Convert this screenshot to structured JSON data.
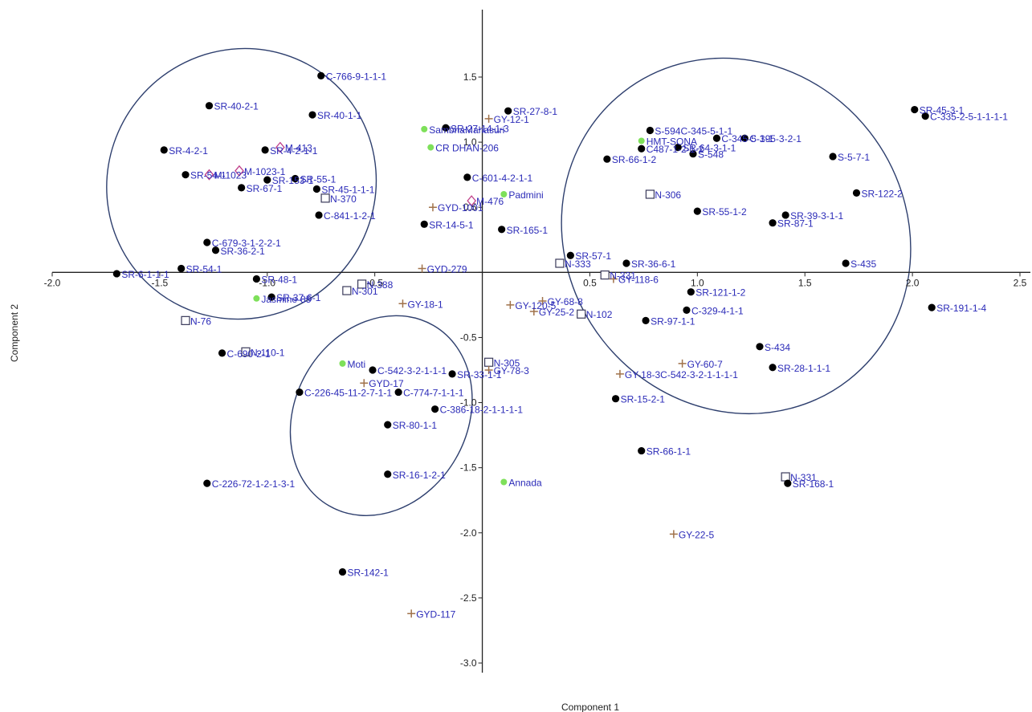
{
  "chart_data": {
    "type": "scatter",
    "title": "",
    "xlabel": "Component 1",
    "ylabel": "Component 2",
    "xlim": [
      -2.0,
      2.5
    ],
    "ylim": [
      -3.0,
      1.8
    ],
    "x_ticks": [
      "-2.0",
      "-1.5",
      "-1.0",
      "-0.5",
      "0",
      "0.5",
      "1.0",
      "1.5",
      "2.0",
      "2.5"
    ],
    "y_ticks": [
      "1.5",
      "1.0",
      "0.5",
      "0",
      "-0.5",
      "-1.0",
      "-1.5",
      "-2.0",
      "-2.5",
      "-3.0"
    ],
    "grid": false,
    "legend": "none",
    "colors": {
      "dot": "#000000",
      "square": "#3a3a5a",
      "cross": "#a0724a",
      "diamond": "#c0408a",
      "green": "#7ee05a",
      "label": "#2b2bb8",
      "ellipse": "#2e3f6e"
    },
    "points": [
      {
        "label": "C-766-9-1-1-1",
        "x": -0.75,
        "y": 1.51,
        "marker": "dot"
      },
      {
        "label": "SR-40-2-1",
        "x": -1.27,
        "y": 1.28,
        "marker": "dot"
      },
      {
        "label": "SR-40-1-1",
        "x": -0.79,
        "y": 1.21,
        "marker": "dot"
      },
      {
        "label": "SambhaMahasuri",
        "x": -0.27,
        "y": 1.1,
        "marker": "green"
      },
      {
        "label": "SR-27-8-1",
        "x": 0.12,
        "y": 1.24,
        "marker": "dot"
      },
      {
        "label": "GY-12-1",
        "x": 0.03,
        "y": 1.18,
        "marker": "cross"
      },
      {
        "label": "SR-27-14-1-3",
        "x": -0.17,
        "y": 1.11,
        "marker": "dot"
      },
      {
        "label": "SR-4-2-1-1",
        "x": -1.01,
        "y": 0.94,
        "marker": "dot"
      },
      {
        "label": "M-413",
        "x": -0.94,
        "y": 0.96,
        "marker": "diamond"
      },
      {
        "label": "SR-4-2-1",
        "x": -1.48,
        "y": 0.94,
        "marker": "dot"
      },
      {
        "label": "M-1023-1",
        "x": -1.13,
        "y": 0.78,
        "marker": "diamond"
      },
      {
        "label": "SR-153-1",
        "x": -1.0,
        "y": 0.71,
        "marker": "dot"
      },
      {
        "label": "SR-54-1",
        "x": -1.38,
        "y": 0.75,
        "marker": "dot"
      },
      {
        "label": "M-1023",
        "x": -1.27,
        "y": 0.75,
        "marker": "diamond"
      },
      {
        "label": "SR-67-1",
        "x": -1.12,
        "y": 0.65,
        "marker": "dot"
      },
      {
        "label": "SR-55-1",
        "x": -0.87,
        "y": 0.72,
        "marker": "dot"
      },
      {
        "label": "SR-45-1-1-1",
        "x": -0.77,
        "y": 0.64,
        "marker": "dot"
      },
      {
        "label": "N-370",
        "x": -0.73,
        "y": 0.57,
        "marker": "square"
      },
      {
        "label": "C-841-1-2-1",
        "x": -0.76,
        "y": 0.44,
        "marker": "dot"
      },
      {
        "label": "CR DHAN-206",
        "x": -0.24,
        "y": 0.96,
        "marker": "green"
      },
      {
        "label": "C-601-4-2-1-1",
        "x": -0.07,
        "y": 0.73,
        "marker": "dot"
      },
      {
        "label": "M-476",
        "x": -0.05,
        "y": 0.55,
        "marker": "diamond"
      },
      {
        "label": "Padmini",
        "x": 0.1,
        "y": 0.6,
        "marker": "green"
      },
      {
        "label": "GYD-1001",
        "x": -0.23,
        "y": 0.5,
        "marker": "cross"
      },
      {
        "label": "SR-14-5-1",
        "x": -0.27,
        "y": 0.37,
        "marker": "dot"
      },
      {
        "label": "SR-165-1",
        "x": 0.09,
        "y": 0.33,
        "marker": "dot"
      },
      {
        "label": "C-679-3-1-2-2-1",
        "x": -1.28,
        "y": 0.23,
        "marker": "dot"
      },
      {
        "label": "SR-36-2-1",
        "x": -1.24,
        "y": 0.17,
        "marker": "dot"
      },
      {
        "label": "SR-6-1-1-1",
        "x": -1.7,
        "y": -0.01,
        "marker": "dot"
      },
      {
        "label": "SR-54-1",
        "x": -1.4,
        "y": 0.03,
        "marker": "dot"
      },
      {
        "label": "GYD-279",
        "x": -0.28,
        "y": 0.03,
        "marker": "cross"
      },
      {
        "label": "SR-48-1",
        "x": -1.05,
        "y": -0.05,
        "marker": "dot"
      },
      {
        "label": "N-301",
        "x": -0.63,
        "y": -0.14,
        "marker": "square"
      },
      {
        "label": "N-388",
        "x": -0.56,
        "y": -0.09,
        "marker": "square"
      },
      {
        "label": "SR-37-6-1",
        "x": -0.98,
        "y": -0.19,
        "marker": "dot"
      },
      {
        "label": "Jasmine-85",
        "x": -1.05,
        "y": -0.2,
        "marker": "green"
      },
      {
        "label": "N-76",
        "x": -1.38,
        "y": -0.37,
        "marker": "square"
      },
      {
        "label": "GY-18-1",
        "x": -0.37,
        "y": -0.24,
        "marker": "cross"
      },
      {
        "label": "C-690-2-1",
        "x": -1.21,
        "y": -0.62,
        "marker": "dot"
      },
      {
        "label": "N-110-1",
        "x": -1.1,
        "y": -0.61,
        "marker": "square"
      },
      {
        "label": "Moti",
        "x": -0.65,
        "y": -0.7,
        "marker": "green"
      },
      {
        "label": "C-542-3-2-1-1-1",
        "x": -0.51,
        "y": -0.75,
        "marker": "dot"
      },
      {
        "label": "GYD-17",
        "x": -0.55,
        "y": -0.85,
        "marker": "cross"
      },
      {
        "label": "SR-33-1-1",
        "x": -0.14,
        "y": -0.78,
        "marker": "dot"
      },
      {
        "label": "N-305",
        "x": 0.03,
        "y": -0.69,
        "marker": "square"
      },
      {
        "label": "GY-78-3",
        "x": 0.03,
        "y": -0.75,
        "marker": "cross"
      },
      {
        "label": "C-226-45-11-2-7-1-1",
        "x": -0.85,
        "y": -0.92,
        "marker": "dot"
      },
      {
        "label": "C-774-7-1-1-1",
        "x": -0.39,
        "y": -0.92,
        "marker": "dot"
      },
      {
        "label": "C-386-18-2-1-1-1-1",
        "x": -0.22,
        "y": -1.05,
        "marker": "dot"
      },
      {
        "label": "SR-80-1-1",
        "x": -0.44,
        "y": -1.17,
        "marker": "dot"
      },
      {
        "label": "SR-16-1-2-1",
        "x": -0.44,
        "y": -1.55,
        "marker": "dot"
      },
      {
        "label": "C-226-72-1-2-1-3-1",
        "x": -1.28,
        "y": -1.62,
        "marker": "dot"
      },
      {
        "label": "Annada",
        "x": 0.1,
        "y": -1.61,
        "marker": "green"
      },
      {
        "label": "SR-142-1",
        "x": -0.65,
        "y": -2.3,
        "marker": "dot"
      },
      {
        "label": "GYD-117",
        "x": -0.33,
        "y": -2.62,
        "marker": "cross"
      },
      {
        "label": "GY-120-5",
        "x": 0.13,
        "y": -0.25,
        "marker": "cross"
      },
      {
        "label": "GY-25-2",
        "x": 0.24,
        "y": -0.3,
        "marker": "cross"
      },
      {
        "label": "GY-68-8",
        "x": 0.28,
        "y": -0.22,
        "marker": "cross"
      },
      {
        "label": "N-333",
        "x": 0.36,
        "y": 0.07,
        "marker": "square"
      },
      {
        "label": "SR-57-1",
        "x": 0.41,
        "y": 0.13,
        "marker": "dot"
      },
      {
        "label": "N-331",
        "x": 0.57,
        "y": -0.02,
        "marker": "square"
      },
      {
        "label": "GY-118-6",
        "x": 0.61,
        "y": -0.05,
        "marker": "cross"
      },
      {
        "label": "SR-36-6-1",
        "x": 0.67,
        "y": 0.07,
        "marker": "dot"
      },
      {
        "label": "N-102",
        "x": 0.46,
        "y": -0.32,
        "marker": "square"
      },
      {
        "label": "SR-97-1-1",
        "x": 0.76,
        "y": -0.37,
        "marker": "dot"
      },
      {
        "label": "SR-121-1-2",
        "x": 0.97,
        "y": -0.15,
        "marker": "dot"
      },
      {
        "label": "C-329-4-1-1",
        "x": 0.95,
        "y": -0.29,
        "marker": "dot"
      },
      {
        "label": "GY-60-7",
        "x": 0.93,
        "y": -0.7,
        "marker": "cross"
      },
      {
        "label": "GY-18-3C-542-3-2-1-1-1-1",
        "x": 0.64,
        "y": -0.78,
        "marker": "cross"
      },
      {
        "label": "S-434",
        "x": 1.29,
        "y": -0.57,
        "marker": "dot"
      },
      {
        "label": "SR-28-1-1-1",
        "x": 1.35,
        "y": -0.73,
        "marker": "dot"
      },
      {
        "label": "SR-15-2-1",
        "x": 0.62,
        "y": -0.97,
        "marker": "dot"
      },
      {
        "label": "SR-66-1-1",
        "x": 0.74,
        "y": -1.37,
        "marker": "dot"
      },
      {
        "label": "N-331",
        "x": 1.41,
        "y": -1.57,
        "marker": "square"
      },
      {
        "label": "SR-168-1",
        "x": 1.42,
        "y": -1.62,
        "marker": "dot"
      },
      {
        "label": "GY-22-5",
        "x": 0.89,
        "y": -2.01,
        "marker": "cross"
      },
      {
        "label": "HMT-SONA",
        "x": 0.74,
        "y": 1.01,
        "marker": "green"
      },
      {
        "label": "S-594C-345-5-1-1",
        "x": 0.78,
        "y": 1.09,
        "marker": "dot"
      },
      {
        "label": "C487-1-2-1-2",
        "x": 0.74,
        "y": 0.95,
        "marker": "dot"
      },
      {
        "label": "SR-66-1-2",
        "x": 0.58,
        "y": 0.87,
        "marker": "dot"
      },
      {
        "label": "SR-64-3-1-1",
        "x": 0.91,
        "y": 0.96,
        "marker": "dot"
      },
      {
        "label": "S-548",
        "x": 0.98,
        "y": 0.91,
        "marker": "dot"
      },
      {
        "label": "C-395-3-2-1",
        "x": 1.22,
        "y": 1.03,
        "marker": "dot"
      },
      {
        "label": "C-345-5-1-1",
        "x": 1.09,
        "y": 1.03,
        "marker": "dot"
      },
      {
        "label": "N-306",
        "x": 0.78,
        "y": 0.6,
        "marker": "square"
      },
      {
        "label": "SR-55-1-2",
        "x": 1.0,
        "y": 0.47,
        "marker": "dot"
      },
      {
        "label": "SR-39-3-1-1",
        "x": 1.41,
        "y": 0.44,
        "marker": "dot"
      },
      {
        "label": "SR-87-1",
        "x": 1.35,
        "y": 0.38,
        "marker": "dot"
      },
      {
        "label": "S-5-7-1",
        "x": 1.63,
        "y": 0.89,
        "marker": "dot"
      },
      {
        "label": "SR-122-2",
        "x": 1.74,
        "y": 0.61,
        "marker": "dot"
      },
      {
        "label": "S-435",
        "x": 1.69,
        "y": 0.07,
        "marker": "dot"
      },
      {
        "label": "SR-45-3-1",
        "x": 2.01,
        "y": 1.25,
        "marker": "dot"
      },
      {
        "label": "C-335-2-5-1-1-1-1",
        "x": 2.06,
        "y": 1.2,
        "marker": "dot"
      },
      {
        "label": "SR-191-1-4",
        "x": 2.09,
        "y": -0.27,
        "marker": "dot"
      }
    ],
    "ellipses": [
      {
        "group": "upper-left",
        "cx": -1.12,
        "cy": 0.68,
        "rx": 0.62,
        "ry": 1.05,
        "rotation": 40
      },
      {
        "group": "lower-middle",
        "cx": -0.47,
        "cy": -1.1,
        "rx": 0.4,
        "ry": 0.8,
        "rotation": 30
      },
      {
        "group": "right",
        "cx": 1.18,
        "cy": 0.28,
        "rx": 0.85,
        "ry": 1.3,
        "rotation": 52
      }
    ]
  }
}
